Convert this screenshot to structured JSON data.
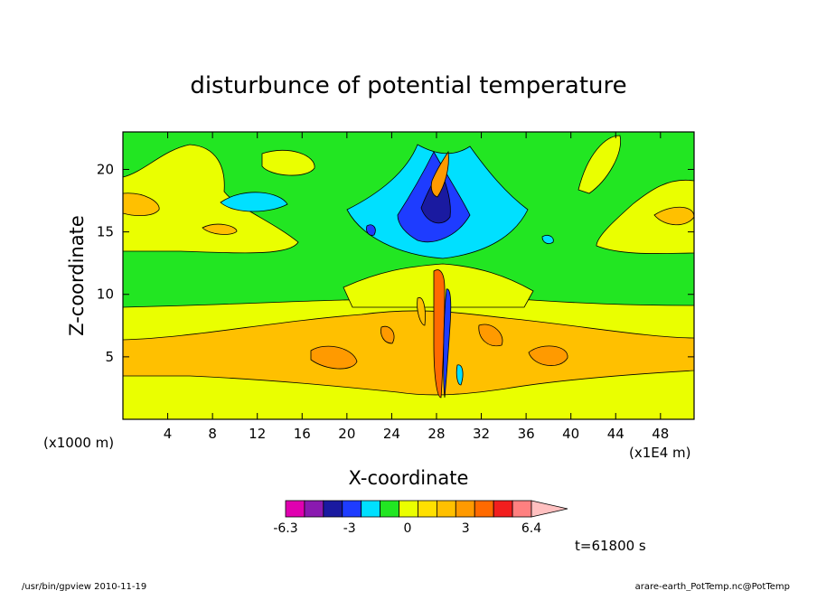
{
  "chart_data": {
    "type": "heatmap",
    "title": "disturbunce of potential temperature",
    "xlabel": "X-coordinate",
    "ylabel": "Z-coordinate",
    "x_unit_left": "(x1000 m)",
    "x_unit_right": "(x1E4 m)",
    "xlim": [
      0,
      51
    ],
    "ylim": [
      0,
      23
    ],
    "xticks": [
      4,
      8,
      12,
      16,
      20,
      24,
      28,
      32,
      36,
      40,
      44,
      48
    ],
    "yticks": [
      5,
      10,
      15,
      20
    ],
    "colorbar": {
      "levels": [
        -6.3,
        -5.3,
        -4.3,
        -3.3,
        -2.3,
        -1.3,
        -0.3,
        0.7,
        1.7,
        2.7,
        3.7,
        4.7,
        5.7,
        6.4
      ],
      "colors": [
        "#e000b0",
        "#8a1ab0",
        "#1a1aa0",
        "#1e3cff",
        "#00e0ff",
        "#22e622",
        "#eaff00",
        "#ffe000",
        "#ffc000",
        "#ff9a00",
        "#ff6a00",
        "#f21e1e",
        "#ff8080",
        "#ffc0c0"
      ],
      "tick_labels": [
        "-6.3",
        "-3",
        "0",
        "3",
        "6.4"
      ]
    },
    "grid": false,
    "annotation_time": "t=61800 s"
  },
  "footer": {
    "left": "/usr/bin/gpview   2010-11-19",
    "right": "arare-earth_PotTemp.nc@PotTemp"
  }
}
